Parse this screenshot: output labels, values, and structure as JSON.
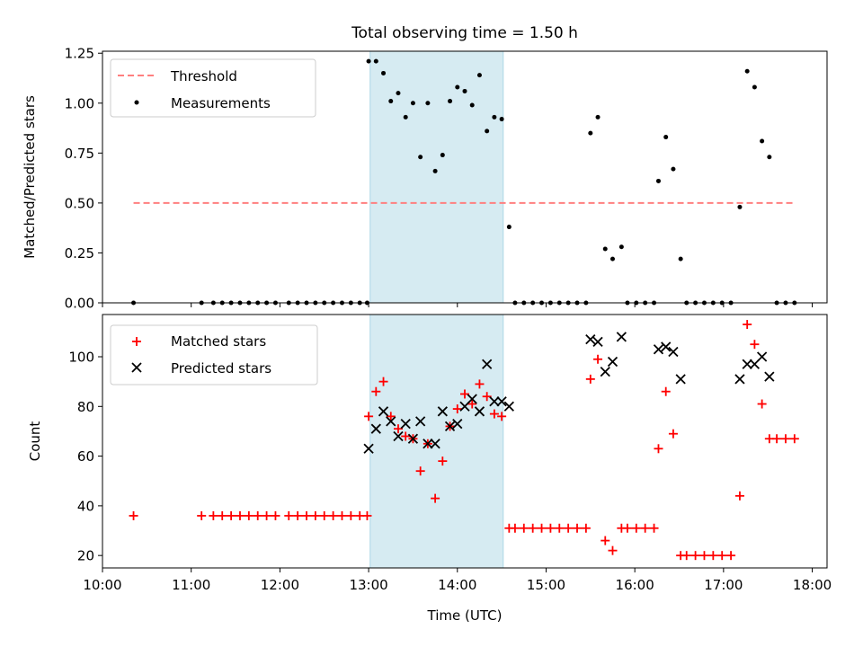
{
  "colors": {
    "threshold": "#ff7f7f",
    "measurement": "#000000",
    "matched": "#ff0000",
    "predicted": "#000000",
    "observing_window": "#add8e6"
  },
  "chart_data": [
    {
      "type": "scatter",
      "title": "Total observing time = 1.50 h",
      "xlabel": "",
      "ylabel": "Matched/Predicted stars",
      "xlim": [
        "10:00",
        "18:10"
      ],
      "ylim": [
        0,
        1.26
      ],
      "yticks": [
        "0.00",
        "0.25",
        "0.50",
        "0.75",
        "1.00",
        "1.25"
      ],
      "legend_position": "upper-left",
      "observing_window": [
        "13:01",
        "14:31"
      ],
      "threshold": {
        "name": "Threshold",
        "value": 0.5,
        "x_range": [
          "10:21",
          "17:48"
        ]
      },
      "series": [
        {
          "name": "Measurements",
          "points": [
            [
              "10:21",
              0
            ],
            [
              "11:07",
              0
            ],
            [
              "11:15",
              0
            ],
            [
              "11:21",
              0
            ],
            [
              "11:27",
              0
            ],
            [
              "11:33",
              0
            ],
            [
              "11:39",
              0
            ],
            [
              "11:45",
              0
            ],
            [
              "11:51",
              0
            ],
            [
              "11:57",
              0
            ],
            [
              "12:06",
              0
            ],
            [
              "12:12",
              0
            ],
            [
              "12:18",
              0
            ],
            [
              "12:24",
              0
            ],
            [
              "12:30",
              0
            ],
            [
              "12:36",
              0
            ],
            [
              "12:42",
              0
            ],
            [
              "12:48",
              0
            ],
            [
              "12:54",
              0
            ],
            [
              "12:59",
              0
            ],
            [
              "13:00",
              1.21
            ],
            [
              "13:05",
              1.21
            ],
            [
              "13:10",
              1.15
            ],
            [
              "13:15",
              1.01
            ],
            [
              "13:20",
              1.05
            ],
            [
              "13:25",
              0.93
            ],
            [
              "13:30",
              1.0
            ],
            [
              "13:35",
              0.73
            ],
            [
              "13:40",
              1.0
            ],
            [
              "13:45",
              0.66
            ],
            [
              "13:50",
              0.74
            ],
            [
              "13:55",
              1.01
            ],
            [
              "14:00",
              1.08
            ],
            [
              "14:05",
              1.06
            ],
            [
              "14:10",
              0.99
            ],
            [
              "14:15",
              1.14
            ],
            [
              "14:20",
              0.86
            ],
            [
              "14:25",
              0.93
            ],
            [
              "14:30",
              0.92
            ],
            [
              "14:35",
              0.38
            ],
            [
              "14:39",
              0
            ],
            [
              "14:45",
              0
            ],
            [
              "14:51",
              0
            ],
            [
              "14:57",
              0
            ],
            [
              "15:03",
              0
            ],
            [
              "15:09",
              0
            ],
            [
              "15:15",
              0
            ],
            [
              "15:21",
              0
            ],
            [
              "15:27",
              0
            ],
            [
              "15:30",
              0.85
            ],
            [
              "15:35",
              0.93
            ],
            [
              "15:40",
              0.27
            ],
            [
              "15:45",
              0.22
            ],
            [
              "15:51",
              0.28
            ],
            [
              "15:55",
              0
            ],
            [
              "16:01",
              0
            ],
            [
              "16:07",
              0
            ],
            [
              "16:13",
              0
            ],
            [
              "16:16",
              0.61
            ],
            [
              "16:21",
              0.83
            ],
            [
              "16:26",
              0.67
            ],
            [
              "16:31",
              0.22
            ],
            [
              "16:35",
              0
            ],
            [
              "16:41",
              0
            ],
            [
              "16:47",
              0
            ],
            [
              "16:53",
              0
            ],
            [
              "16:59",
              0
            ],
            [
              "17:05",
              0
            ],
            [
              "17:11",
              0.48
            ],
            [
              "17:16",
              1.16
            ],
            [
              "17:21",
              1.08
            ],
            [
              "17:26",
              0.81
            ],
            [
              "17:31",
              0.73
            ],
            [
              "17:36",
              0
            ],
            [
              "17:42",
              0
            ],
            [
              "17:48",
              0
            ]
          ]
        }
      ]
    },
    {
      "type": "scatter",
      "title": "",
      "xlabel": "Time (UTC)",
      "ylabel": "Count",
      "xlim": [
        "10:00",
        "18:10"
      ],
      "ylim": [
        15,
        117
      ],
      "xticks": [
        "10:00",
        "11:00",
        "12:00",
        "13:00",
        "14:00",
        "15:00",
        "16:00",
        "17:00",
        "18:00"
      ],
      "yticks": [
        "20",
        "40",
        "60",
        "80",
        "100"
      ],
      "legend_position": "upper-left",
      "observing_window": [
        "13:01",
        "14:31"
      ],
      "series": [
        {
          "name": "Matched stars",
          "marker": "+",
          "points": [
            [
              "10:21",
              36
            ],
            [
              "11:07",
              36
            ],
            [
              "11:15",
              36
            ],
            [
              "11:21",
              36
            ],
            [
              "11:27",
              36
            ],
            [
              "11:33",
              36
            ],
            [
              "11:39",
              36
            ],
            [
              "11:45",
              36
            ],
            [
              "11:51",
              36
            ],
            [
              "11:57",
              36
            ],
            [
              "12:06",
              36
            ],
            [
              "12:12",
              36
            ],
            [
              "12:18",
              36
            ],
            [
              "12:24",
              36
            ],
            [
              "12:30",
              36
            ],
            [
              "12:36",
              36
            ],
            [
              "12:42",
              36
            ],
            [
              "12:48",
              36
            ],
            [
              "12:54",
              36
            ],
            [
              "12:59",
              36
            ],
            [
              "13:00",
              76
            ],
            [
              "13:05",
              86
            ],
            [
              "13:10",
              90
            ],
            [
              "13:15",
              76
            ],
            [
              "13:20",
              71
            ],
            [
              "13:25",
              68
            ],
            [
              "13:30",
              67
            ],
            [
              "13:35",
              54
            ],
            [
              "13:40",
              65
            ],
            [
              "13:45",
              43
            ],
            [
              "13:50",
              58
            ],
            [
              "13:55",
              72
            ],
            [
              "14:00",
              79
            ],
            [
              "14:05",
              85
            ],
            [
              "14:10",
              81
            ],
            [
              "14:15",
              89
            ],
            [
              "14:20",
              84
            ],
            [
              "14:25",
              77
            ],
            [
              "14:30",
              76
            ],
            [
              "14:35",
              31
            ],
            [
              "14:39",
              31
            ],
            [
              "14:45",
              31
            ],
            [
              "14:51",
              31
            ],
            [
              "14:57",
              31
            ],
            [
              "15:03",
              31
            ],
            [
              "15:09",
              31
            ],
            [
              "15:15",
              31
            ],
            [
              "15:21",
              31
            ],
            [
              "15:27",
              31
            ],
            [
              "15:30",
              91
            ],
            [
              "15:35",
              99
            ],
            [
              "15:40",
              26
            ],
            [
              "15:45",
              22
            ],
            [
              "15:51",
              31
            ],
            [
              "15:55",
              31
            ],
            [
              "16:01",
              31
            ],
            [
              "16:07",
              31
            ],
            [
              "16:13",
              31
            ],
            [
              "16:16",
              63
            ],
            [
              "16:21",
              86
            ],
            [
              "16:26",
              69
            ],
            [
              "16:31",
              20
            ],
            [
              "16:35",
              20
            ],
            [
              "16:41",
              20
            ],
            [
              "16:47",
              20
            ],
            [
              "16:53",
              20
            ],
            [
              "16:59",
              20
            ],
            [
              "17:05",
              20
            ],
            [
              "17:11",
              44
            ],
            [
              "17:16",
              113
            ],
            [
              "17:21",
              105
            ],
            [
              "17:26",
              81
            ],
            [
              "17:31",
              67
            ],
            [
              "17:36",
              67
            ],
            [
              "17:42",
              67
            ],
            [
              "17:48",
              67
            ]
          ]
        },
        {
          "name": "Predicted stars",
          "marker": "x",
          "points": [
            [
              "13:00",
              63
            ],
            [
              "13:05",
              71
            ],
            [
              "13:10",
              78
            ],
            [
              "13:15",
              74
            ],
            [
              "13:20",
              68
            ],
            [
              "13:25",
              73
            ],
            [
              "13:30",
              67
            ],
            [
              "13:35",
              74
            ],
            [
              "13:40",
              65
            ],
            [
              "13:45",
              65
            ],
            [
              "13:50",
              78
            ],
            [
              "13:55",
              72
            ],
            [
              "14:00",
              73
            ],
            [
              "14:05",
              80
            ],
            [
              "14:10",
              83
            ],
            [
              "14:15",
              78
            ],
            [
              "14:20",
              97
            ],
            [
              "14:25",
              82
            ],
            [
              "14:30",
              82
            ],
            [
              "14:35",
              80
            ],
            [
              "15:30",
              107
            ],
            [
              "15:35",
              106
            ],
            [
              "15:40",
              94
            ],
            [
              "15:45",
              98
            ],
            [
              "15:51",
              108
            ],
            [
              "16:16",
              103
            ],
            [
              "16:21",
              104
            ],
            [
              "16:26",
              102
            ],
            [
              "16:31",
              91
            ],
            [
              "17:11",
              91
            ],
            [
              "17:16",
              97
            ],
            [
              "17:21",
              97
            ],
            [
              "17:26",
              100
            ],
            [
              "17:31",
              92
            ]
          ]
        }
      ]
    }
  ]
}
